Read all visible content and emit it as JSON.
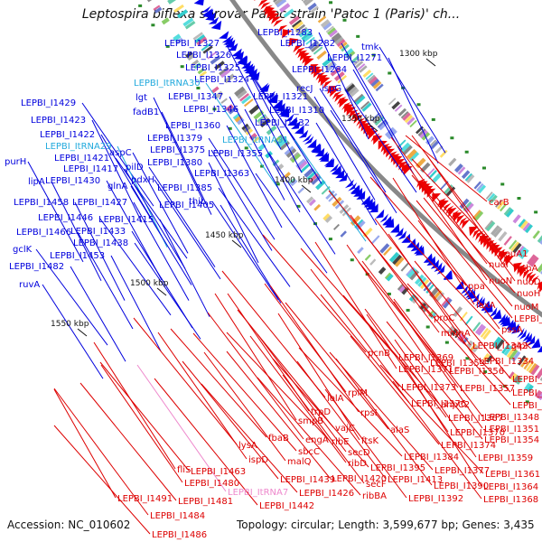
{
  "title": "Leptospira biflexa serovar Patoc strain 'Patoc 1 (Paris)' ch...",
  "footer": {
    "accession": "Accession: NC_010602",
    "summary": "Topology: circular; Length: 3,599,677 bp; Genes: 3,435"
  },
  "colors": {
    "forward_label": "#0000dd",
    "reverse_label": "#dd0000",
    "trna_forward": "#22aadd",
    "trna_reverse": "#ee88cc",
    "backbone": "#888888",
    "forward_arrow": "#0000ee",
    "reverse_arrow": "#ee0000"
  },
  "scale_ticks": [
    "1300 kbp",
    "1350 kbp",
    "1400 kbp",
    "1450 kbp",
    "1500 kbp",
    "1550 kbp"
  ],
  "forward_labels": [
    "LEPBI_I1283",
    "LEPBI_I1327",
    "LEPBI_I1282",
    "tmk",
    "LEPBI_I1326",
    "LEPBI_I1271",
    "LEPBI_I1325",
    "LEPBI_I1284",
    "LEPBI_I1324",
    "LEPBI_ItRNA30",
    "lgt",
    "LEPBI_I1347",
    "LEPBI_I1321",
    "recJ",
    "ispG",
    "fadB1",
    "LEPBI_I1346",
    "LEPBI_I1332",
    "LEPBI_I1310",
    "LEPBI_I1429",
    "LEPBI_I1423",
    "LEPBI_I1360",
    "LEPBI_I1422",
    "LEPBI_I1379",
    "LEPBI_ItRNA31",
    "LEPBI_ItRNA29",
    "aspC",
    "LEPBI_I1375",
    "LEPBI_I1355",
    "LEPBI_I1421",
    "LEPBI_I1380",
    "purH",
    "LEPBI_I1417",
    "pilD",
    "LEPBI_I1363",
    "lipA",
    "LEPBI_I1430",
    "glnA",
    "pdxH",
    "LEPBI_I1385",
    "LEPBI_I1458",
    "LEPBI_I1427",
    "LEPBI_I1405",
    "thiL",
    "LEPBI_I1446",
    "LEPBI_I1415",
    "LEPBI_I1466",
    "LEPBI_I1433",
    "LEPBI_I1438",
    "gclK",
    "LEPBI_I1453",
    "LEPBI_I1482",
    "ruvA"
  ],
  "reverse_labels": [
    "carB",
    "leuA1",
    "nuoI",
    "pthA",
    "nuoN",
    "nuoD",
    "ppa",
    "nuoH",
    "lexA",
    "nuoM",
    "LEPBI_I1317",
    "proC",
    "pssA",
    "mnmA",
    "LEPBI_I1342",
    "glpK",
    "LEPBI_I1353",
    "LEPBI_I1334",
    "LEPBI_I1369",
    "pcnB",
    "LEPBI_I1371",
    "LEPBI_I1356",
    "LEPBI_I1337",
    "lolA",
    "rplM",
    "LEPBI_I1373",
    "LEPBI_I1357",
    "LEPBI_I1341",
    "trpD",
    "rpsI",
    "ahpC2",
    "LEPBI_I1343",
    "smpB",
    "LEPBI_I1376",
    "vajC",
    "alaS",
    "LEPBI_I1367",
    "LEPBI_I1348",
    "engA",
    "ribE",
    "LEPBI_I1370",
    "LEPBI_I1351",
    "fbaB",
    "sbcC",
    "ftsK",
    "LEPBI_I1374",
    "LEPBI_I1354",
    "lysA",
    "malQ",
    "secD",
    "ribD",
    "LEPBI_I1384",
    "LEPBI_I1359",
    "ispD",
    "LEPBI_I1395",
    "LEPBI_I1377",
    "fliS",
    "LEPBI_I1463",
    "LEPBI_I1439",
    "LEPBI_I1420",
    "secF",
    "LEPBI_I1413",
    "LEPBI_I1390",
    "LEPBI_I1361",
    "LEPBI_I1480",
    "LEPBI_ItRNA7",
    "LEPBI_I1426",
    "ribBA",
    "LEPBI_I1364",
    "LEPBI_I1491",
    "LEPBI_I1481",
    "LEPBI_I1442",
    "LEPBI_I1392",
    "LEPBI_I1368",
    "LEPBI_I1484",
    "LEPBI_I1486"
  ]
}
